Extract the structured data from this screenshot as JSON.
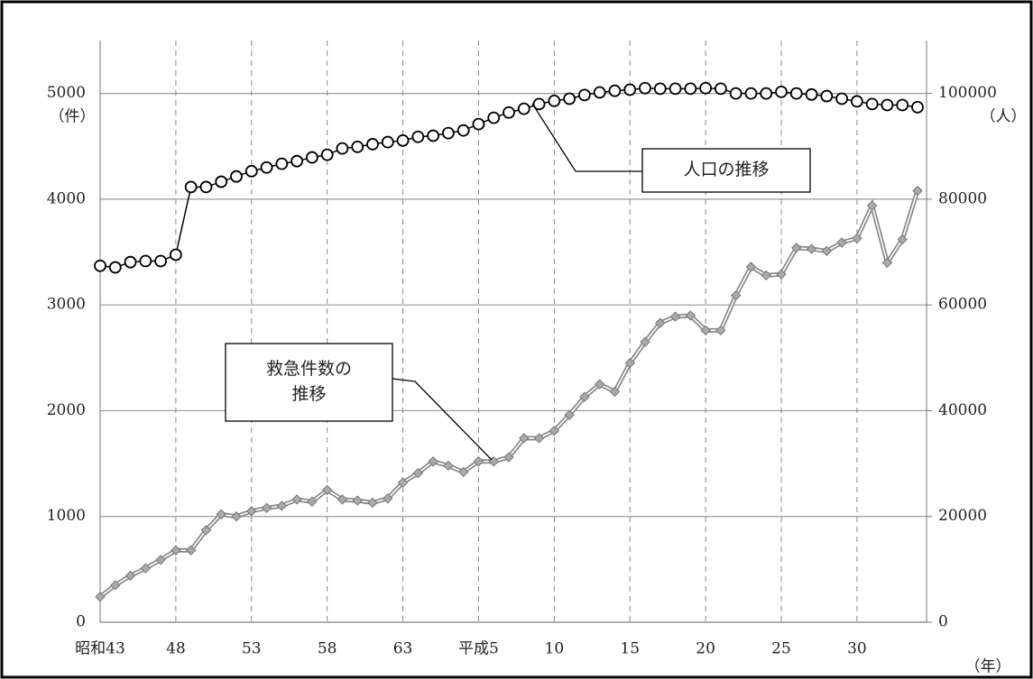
{
  "chart_data": {
    "type": "line",
    "categories": [
      "昭和43",
      null,
      null,
      null,
      null,
      "48",
      null,
      null,
      null,
      null,
      "53",
      null,
      null,
      null,
      null,
      "58",
      null,
      null,
      null,
      null,
      "63",
      null,
      null,
      null,
      null,
      "平成5",
      null,
      null,
      null,
      null,
      "10",
      null,
      null,
      null,
      null,
      "15",
      null,
      null,
      null,
      null,
      "20",
      null,
      null,
      null,
      null,
      "25",
      null,
      null,
      null,
      null,
      "30",
      null,
      null,
      null,
      null
    ],
    "series": [
      {
        "color": "#888888",
        "values": [
          240,
          350,
          440,
          510,
          590,
          680,
          680,
          870,
          1020,
          1000,
          1050,
          1080,
          1100,
          1160,
          1140,
          1250,
          1160,
          1150,
          1130,
          1170,
          1320,
          1410,
          1520,
          1480,
          1420,
          1520,
          1520,
          1560,
          1740,
          1740,
          1810,
          1960,
          2130,
          2250,
          2180,
          2450,
          2650,
          2830,
          2890,
          2900,
          2760,
          2760,
          3090,
          3360,
          3280,
          3290,
          3540,
          3530,
          3510,
          3590,
          3630,
          3940,
          3400,
          3620,
          4080
        ]
      },
      {
        "color": "#000000",
        "axis": "y2",
        "values": [
          67400,
          67100,
          68100,
          68300,
          68300,
          69500,
          82300,
          82300,
          83300,
          84300,
          85300,
          86000,
          86700,
          87200,
          87900,
          88400,
          89600,
          89900,
          90400,
          90800,
          91100,
          91800,
          92000,
          92500,
          93000,
          94200,
          95400,
          96400,
          97100,
          98000,
          98600,
          99000,
          99700,
          100200,
          100500,
          100700,
          101000,
          100900,
          100900,
          100900,
          101000,
          100900,
          100000,
          100000,
          100000,
          100300,
          100000,
          99800,
          99500,
          99000,
          98500,
          98000,
          97800,
          97800,
          97400
        ]
      }
    ],
    "ylim": [
      0,
      5500
    ],
    "yticks": [
      0,
      1000,
      2000,
      3000,
      4000,
      5000
    ],
    "y2lim": [
      0,
      110000
    ],
    "y2ticks": [
      0,
      20000,
      40000,
      60000,
      80000,
      100000
    ],
    "y_unit": "（件）",
    "y2_unit": "（人）",
    "x_unit": "（年）",
    "grid": true,
    "annotations": [
      {
        "lines": [
          "人口の推移"
        ]
      },
      {
        "lines": [
          "救急件数の",
          "推移"
        ]
      }
    ]
  }
}
